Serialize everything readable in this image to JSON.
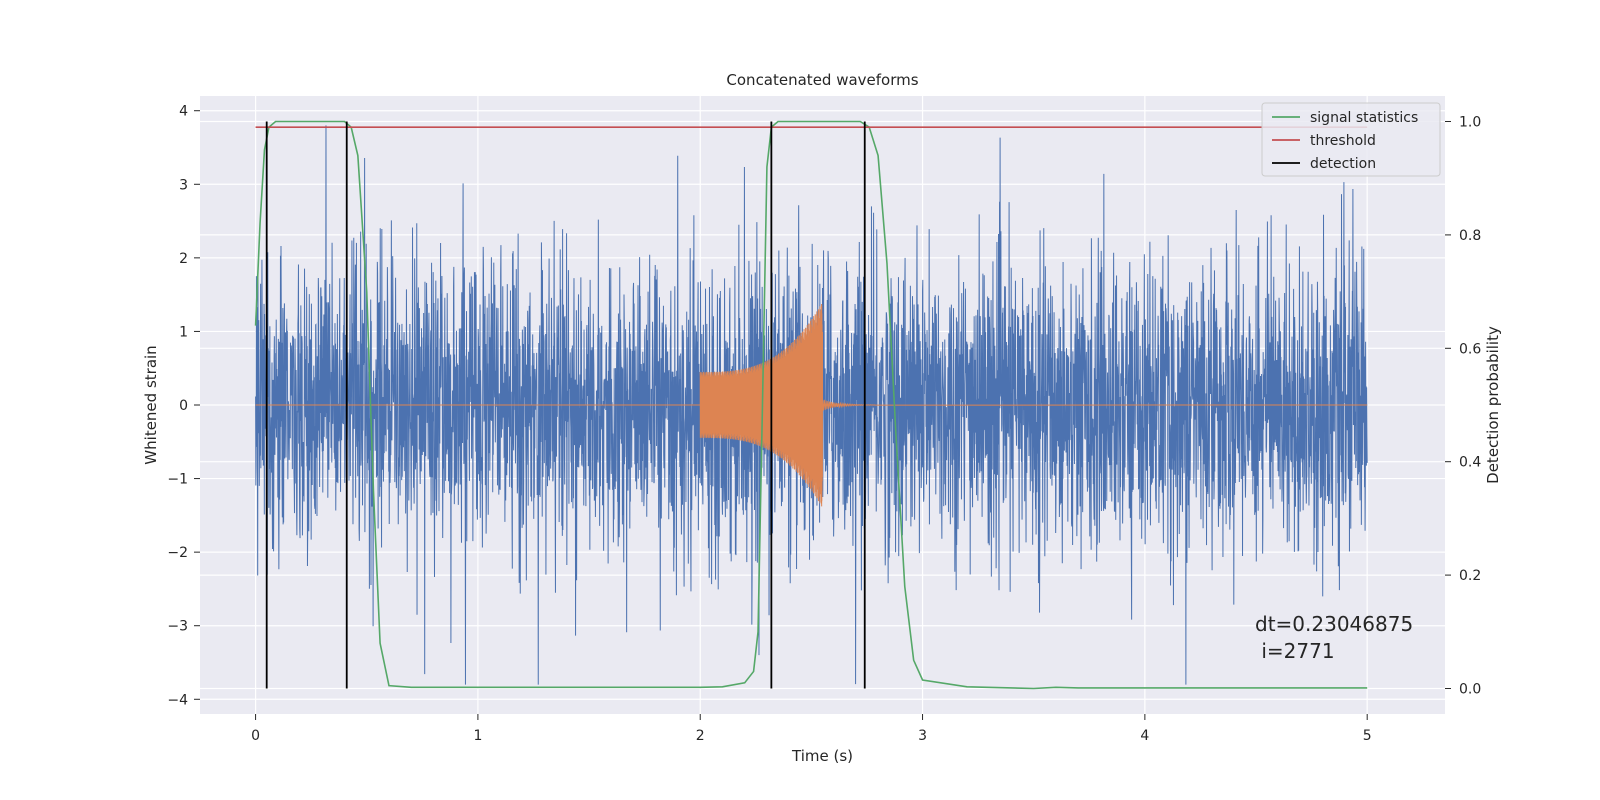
{
  "chart_data": {
    "type": "line",
    "title": "Concatenated waveforms",
    "xlabel": "Time (s)",
    "ylabel": "Whitened strain",
    "ylabel_right": "Detection probability",
    "xlim": [
      -0.25,
      5.35
    ],
    "ylim": [
      -4.2,
      4.2
    ],
    "ylim_right": [
      -0.045,
      1.045
    ],
    "x_ticks": [
      0,
      1,
      2,
      3,
      4,
      5
    ],
    "x_tick_labels": [
      "0",
      "1",
      "2",
      "3",
      "4",
      "5"
    ],
    "y_ticks": [
      -4,
      -3,
      -2,
      -1,
      0,
      1,
      2,
      3,
      4
    ],
    "y_tick_labels": [
      "−4",
      "−3",
      "−2",
      "−1",
      "0",
      "1",
      "2",
      "3",
      "4"
    ],
    "y_right_ticks": [
      0.0,
      0.2,
      0.4,
      0.6,
      0.8,
      1.0
    ],
    "y_right_tick_labels": [
      "0.0",
      "0.2",
      "0.4",
      "0.6",
      "0.8",
      "1.0"
    ],
    "grid": true,
    "legend_position": "top-right",
    "series": [
      {
        "name": "",
        "kind": "strain-noise",
        "color": "#4c72b0",
        "x_range": [
          0,
          5
        ],
        "typical_amplitude": 1.0,
        "peak_max": 3.8,
        "peak_min": -3.8
      },
      {
        "name": "",
        "kind": "injected-chirp",
        "color": "#dd8452",
        "chirp_start": 2.0,
        "chirp_end": 2.55,
        "start_amplitude": 0.45,
        "end_amplitude": 1.4,
        "baseline": 0
      },
      {
        "name": "signal statistics",
        "axis": "right",
        "color": "#55a868",
        "x": [
          0,
          0.02,
          0.04,
          0.06,
          0.09,
          0.12,
          0.2,
          0.3,
          0.4,
          0.43,
          0.46,
          0.5,
          0.53,
          0.56,
          0.6,
          0.7,
          1.0,
          1.5,
          2.0,
          2.1,
          2.2,
          2.24,
          2.26,
          2.28,
          2.3,
          2.32,
          2.35,
          2.4,
          2.6,
          2.72,
          2.76,
          2.8,
          2.84,
          2.88,
          2.92,
          2.96,
          3.0,
          3.2,
          3.5,
          3.6,
          3.7,
          4.0,
          4.5,
          5.0
        ],
        "values": [
          0.64,
          0.82,
          0.95,
          0.99,
          1.0,
          1.0,
          1.0,
          1.0,
          1.0,
          0.99,
          0.94,
          0.7,
          0.35,
          0.08,
          0.005,
          0.002,
          0.002,
          0.002,
          0.002,
          0.003,
          0.01,
          0.03,
          0.1,
          0.5,
          0.92,
          0.99,
          1.0,
          1.0,
          1.0,
          1.0,
          0.99,
          0.94,
          0.75,
          0.45,
          0.18,
          0.05,
          0.015,
          0.003,
          0.0,
          0.002,
          0.001,
          0.001,
          0.001,
          0.001
        ]
      },
      {
        "name": "threshold",
        "axis": "right",
        "color": "#c44e52",
        "x": [
          0,
          5
        ],
        "values": [
          0.99,
          0.99
        ]
      },
      {
        "name": "detection",
        "axis": "right",
        "color": "#000000",
        "kind": "vlines",
        "x": [
          0.05,
          0.41,
          2.32,
          2.74
        ],
        "ymin": 0.0,
        "ymax": 1.0
      }
    ],
    "annotations": [
      "dt=0.23046875",
      " i=2771"
    ],
    "colors": {
      "background": "#eaeaf2",
      "grid": "#ffffff"
    }
  }
}
